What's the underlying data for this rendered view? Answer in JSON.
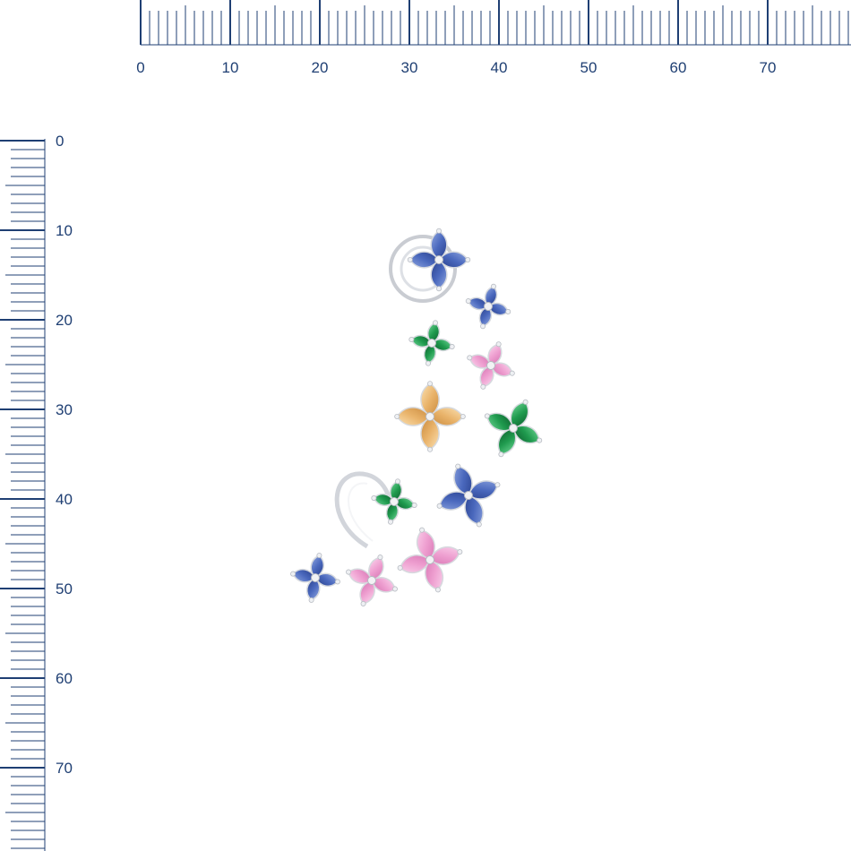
{
  "ruler_color": "#1f3f73",
  "horizontal_ruler": {
    "labels": [
      "0",
      "10",
      "20",
      "30",
      "40",
      "50",
      "60",
      "70"
    ]
  },
  "vertical_ruler": {
    "labels": [
      "0",
      "10",
      "20",
      "30",
      "40",
      "50",
      "60",
      "70"
    ]
  },
  "product": {
    "description_icon": "flower-cluster-ear-cuff",
    "gem_colors": {
      "sapphire": "#3f5fb4",
      "emerald": "#1f9a4e",
      "citrine": "#e9b36a",
      "pink_sapphire": "#ee9fd0",
      "metal": "#d9dde3"
    }
  }
}
